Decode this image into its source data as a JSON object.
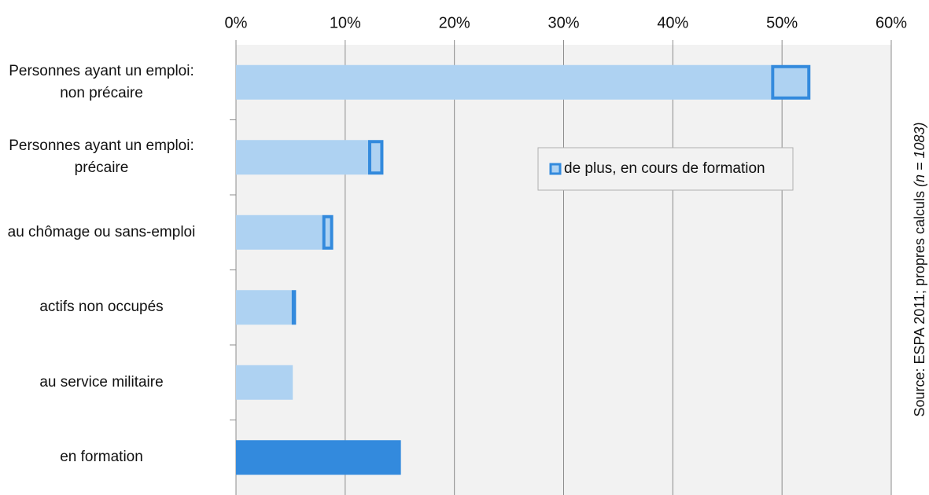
{
  "chart_data": {
    "type": "stacked-barh",
    "categories": [
      "Personnes ayant un emploi:\nnon précaire",
      "Personnes ayant un emploi:\nprécaire",
      "au chômage ou sans-emploi",
      "actifs non occupés",
      "au service militaire",
      "en formation"
    ],
    "series": [
      {
        "color": "#aed2f2",
        "colors": [
          "#aed2f2",
          "#aed2f2",
          "#aed2f2",
          "#aed2f2",
          "#aed2f2",
          "#338add"
        ],
        "values": [
          49.0,
          12.1,
          7.9,
          5.1,
          5.2,
          15.1
        ]
      },
      {
        "name": "de plus, en cours de formation",
        "color": "#aed2f2",
        "outline": "#338add",
        "values": [
          3.6,
          1.4,
          1.0,
          0.4,
          0,
          null
        ]
      }
    ],
    "xlim": [
      0,
      60
    ],
    "xticks": [
      {
        "value": 0,
        "label": "0%"
      },
      {
        "value": 10,
        "label": "10%"
      },
      {
        "value": 20,
        "label": "20%"
      },
      {
        "value": 30,
        "label": "30%"
      },
      {
        "value": 40,
        "label": "40%"
      },
      {
        "value": 50,
        "label": "50%"
      },
      {
        "value": 60,
        "label": "60%"
      }
    ],
    "grid": true,
    "legend": "center-right",
    "source": "Source: ESPA 2011; propres calculs",
    "source_n": "(n = 1083)"
  }
}
